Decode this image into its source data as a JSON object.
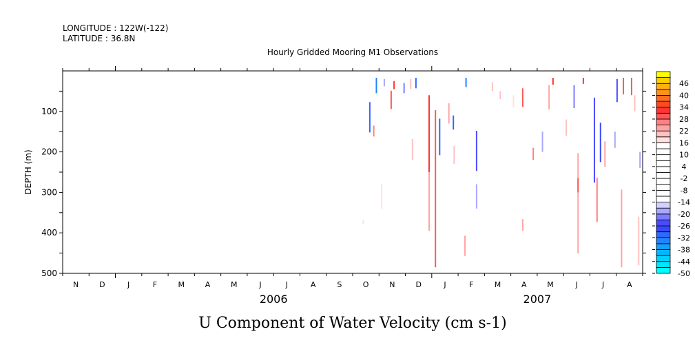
{
  "header": {
    "longitude": "LONGITUDE : 122W(-122)",
    "latitude": "LATITUDE : 36.8N",
    "title": "Hourly Gridded Mooring M1 Observations"
  },
  "chart_data": {
    "type": "heatmap",
    "title": "Hourly Gridded Mooring M1 Observations",
    "xlabel": "",
    "ylabel": "DEPTH (m)",
    "variable_label": "U Component of Water Velocity (cm s-1)",
    "x_units": "months since 2005-11-01",
    "xlim": [
      0,
      22
    ],
    "ylim": [
      500,
      0
    ],
    "month_labels": [
      "N",
      "D",
      "J",
      "F",
      "M",
      "A",
      "M",
      "J",
      "J",
      "A",
      "S",
      "O",
      "N",
      "D",
      "J",
      "F",
      "M",
      "A",
      "M",
      "J",
      "J",
      "A"
    ],
    "year_labels": [
      {
        "label": "2006",
        "center": 8
      },
      {
        "label": "2007",
        "center": 18
      }
    ],
    "year_boundaries": [
      2,
      14
    ],
    "y_ticks": [
      "100",
      "200",
      "300",
      "400",
      "500"
    ],
    "y_tick_values": [
      100,
      200,
      300,
      400,
      500
    ],
    "colorbar": {
      "min": -50,
      "step": 3,
      "colors": [
        "#00ffff",
        "#00e6ff",
        "#00cfff",
        "#00b8ff",
        "#10a0ff",
        "#2084ff",
        "#3068ff",
        "#3848ff",
        "#4a4aff",
        "#7c7cff",
        "#a8a8ff",
        "#d2d2ff",
        "#ffffff",
        "#ffffff",
        "#ffffff",
        "#ffffff",
        "#ffffff",
        "#ffffff",
        "#ffffff",
        "#ffffff",
        "#ffffff",
        "#ffffff",
        "#ffe0e0",
        "#ffc2c2",
        "#ffa4a4",
        "#ff8080",
        "#ff5656",
        "#ff3434",
        "#ff4a20",
        "#ff6e20",
        "#ff9018",
        "#ffb010",
        "#ffd000",
        "#ffff00"
      ],
      "labels": [
        "46",
        "40",
        "34",
        "28",
        "22",
        "16",
        "10",
        "4",
        "-2",
        "-8",
        "-14",
        "-20",
        "-26",
        "-32",
        "-38",
        "-44",
        "-50"
      ],
      "label_values": [
        46,
        40,
        34,
        28,
        22,
        16,
        10,
        4,
        -2,
        -8,
        -14,
        -20,
        -26,
        -32,
        -38,
        -44,
        -50
      ]
    },
    "streaks": [
      [
        13.9,
        60,
        250,
        31
      ],
      [
        13.9,
        250,
        395,
        24
      ],
      [
        14.14,
        97,
        485,
        28
      ],
      [
        14.3,
        118,
        208,
        -30
      ],
      [
        14.82,
        110,
        145,
        -32
      ],
      [
        15.7,
        148,
        247,
        -26
      ],
      [
        15.7,
        280,
        340,
        -20
      ],
      [
        11.65,
        77,
        152,
        -30
      ],
      [
        11.9,
        17,
        55,
        -35
      ],
      [
        13.4,
        17,
        43,
        -32
      ],
      [
        15.3,
        17,
        40,
        -34
      ],
      [
        12.46,
        49,
        94,
        30
      ],
      [
        12.57,
        25,
        45,
        32
      ],
      [
        11.8,
        135,
        162,
        26
      ],
      [
        13.27,
        168,
        220,
        20
      ],
      [
        17.45,
        43,
        89,
        30
      ],
      [
        18.6,
        17,
        34,
        32
      ],
      [
        17.85,
        190,
        220,
        26
      ],
      [
        19.55,
        203,
        451,
        22
      ],
      [
        19.55,
        265,
        300,
        28
      ],
      [
        20.17,
        66,
        276,
        -24
      ],
      [
        20.4,
        128,
        225,
        -28
      ],
      [
        20.27,
        264,
        373,
        26
      ],
      [
        20.57,
        174,
        237,
        22
      ],
      [
        21.03,
        20,
        77,
        -24
      ],
      [
        21.27,
        17,
        58,
        28
      ],
      [
        21.2,
        293,
        485,
        22
      ],
      [
        19.75,
        17,
        32,
        32
      ],
      [
        21.58,
        17,
        60,
        28
      ],
      [
        15.26,
        407,
        457,
        22
      ],
      [
        17.45,
        366,
        395,
        22
      ],
      [
        14.85,
        185,
        230,
        20
      ],
      [
        18.45,
        35,
        95,
        24
      ],
      [
        19.4,
        35,
        92,
        -22
      ],
      [
        14.65,
        80,
        130,
        22
      ],
      [
        11.4,
        368,
        378,
        18
      ],
      [
        13.2,
        20,
        45,
        20
      ],
      [
        12.2,
        20,
        38,
        -20
      ],
      [
        12.95,
        30,
        55,
        -22
      ],
      [
        16.3,
        28,
        50,
        20
      ],
      [
        17.1,
        60,
        90,
        18
      ],
      [
        18.2,
        150,
        200,
        -20
      ],
      [
        19.1,
        120,
        160,
        20
      ],
      [
        20.95,
        150,
        190,
        -20
      ],
      [
        21.7,
        60,
        100,
        20
      ],
      [
        21.9,
        200,
        240,
        -20
      ],
      [
        21.85,
        360,
        480,
        20
      ],
      [
        12.1,
        280,
        340,
        18
      ],
      [
        16.6,
        50,
        70,
        20
      ]
    ]
  }
}
